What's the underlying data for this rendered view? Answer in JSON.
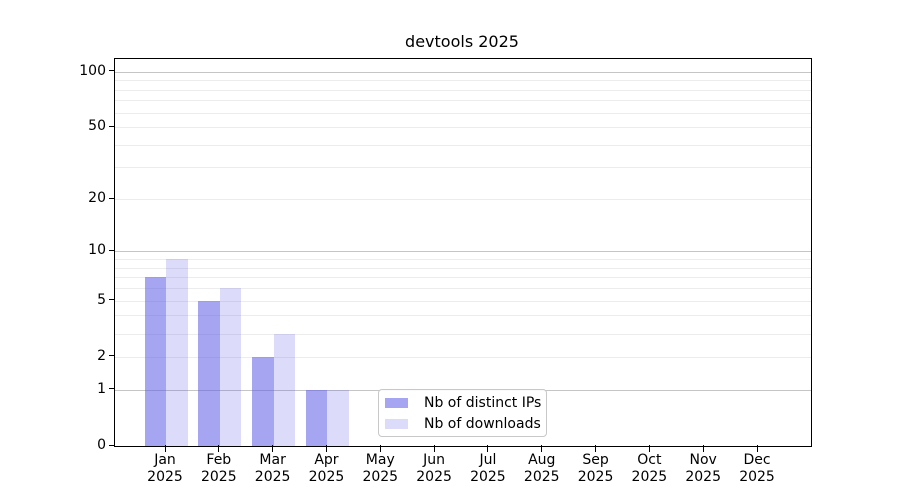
{
  "chart_data": {
    "type": "bar",
    "title": "devtools 2025",
    "categories": [
      "Jan 2025",
      "Feb 2025",
      "Mar 2025",
      "Apr 2025",
      "May 2025",
      "Jun 2025",
      "Jul 2025",
      "Aug 2025",
      "Sep 2025",
      "Oct 2025",
      "Nov 2025",
      "Dec 2025"
    ],
    "series": [
      {
        "name": "Nb of distinct IPs",
        "color": "rgba(91,91,231,0.55)",
        "values": [
          7,
          5,
          2,
          1,
          0,
          0,
          0,
          0,
          0,
          0,
          0,
          0
        ]
      },
      {
        "name": "Nb of downloads",
        "color": "rgba(91,91,231,0.21)",
        "values": [
          9,
          6,
          3,
          1,
          0,
          0,
          0,
          0,
          0,
          0,
          0,
          0
        ]
      }
    ],
    "xlabel": "",
    "ylabel": "",
    "yscale": "log1p",
    "ylim": [
      0,
      117
    ],
    "yticks": [
      0,
      1,
      2,
      5,
      10,
      20,
      50,
      100
    ],
    "minor_gridlines": [
      2,
      3,
      4,
      5,
      6,
      7,
      8,
      9,
      20,
      30,
      40,
      50,
      60,
      70,
      80,
      90
    ],
    "major_gridlines": [
      1,
      10,
      100
    ],
    "grid": "on",
    "legend_position": "lower center"
  },
  "colors": {
    "bar_distinct_ips": "rgba(91,91,231,0.55)",
    "bar_downloads": "rgba(91,91,231,0.21)",
    "major_grid": "#c5c5c5",
    "minor_grid": "#ececec",
    "axis": "#000000",
    "legend_border": "#c8c8c8",
    "background": "#ffffff"
  }
}
